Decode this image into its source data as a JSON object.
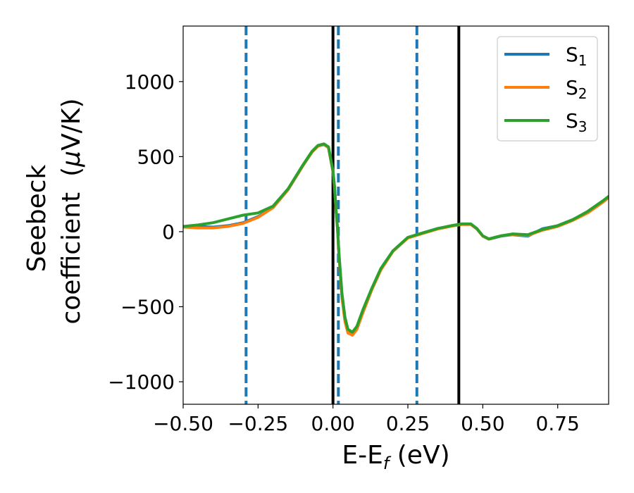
{
  "chart_data": {
    "type": "line",
    "title": "",
    "xlabel": "E-E",
    "xlabel_sub": "f",
    "xlabel_unit": " (eV)",
    "ylabel_line1": "Seebeck",
    "ylabel_line2": "coefficient",
    "ylabel_unit_prefix": "(",
    "ylabel_unit_mu": "μ",
    "ylabel_unit_suffix": "V/K)",
    "xlim": [
      -0.5,
      0.92
    ],
    "ylim": [
      -1150,
      1370
    ],
    "xticks": [
      -0.5,
      -0.25,
      0.0,
      0.25,
      0.5,
      0.75
    ],
    "xtick_labels": [
      "−0.50",
      "−0.25",
      "0.00",
      "0.25",
      "0.50",
      "0.75"
    ],
    "yticks": [
      1000,
      500,
      0,
      -500,
      -1000
    ],
    "ytick_labels": [
      "1000",
      "500",
      "0",
      "−500",
      "−1000"
    ],
    "grid": false,
    "legend_position": "top-right",
    "vlines": [
      {
        "x": -0.29,
        "style": "dashed",
        "color": "#1f77b4"
      },
      {
        "x": 0.0,
        "style": "solid",
        "color": "#000000"
      },
      {
        "x": 0.018,
        "style": "dashed",
        "color": "#1f77b4"
      },
      {
        "x": 0.28,
        "style": "dashed",
        "color": "#1f77b4"
      },
      {
        "x": 0.42,
        "style": "solid",
        "color": "#000000"
      }
    ],
    "series": [
      {
        "name": "S",
        "name_sub": "1",
        "color": "#1f77b4",
        "x": [
          -0.5,
          -0.45,
          -0.4,
          -0.35,
          -0.3,
          -0.25,
          -0.2,
          -0.15,
          -0.1,
          -0.07,
          -0.05,
          -0.03,
          -0.015,
          0.0,
          0.005,
          0.01,
          0.015,
          0.02,
          0.03,
          0.04,
          0.05,
          0.065,
          0.08,
          0.1,
          0.13,
          0.16,
          0.2,
          0.25,
          0.3,
          0.35,
          0.4,
          0.43,
          0.46,
          0.48,
          0.5,
          0.52,
          0.54,
          0.56,
          0.6,
          0.65,
          0.7,
          0.75,
          0.8,
          0.85,
          0.9,
          0.92
        ],
        "y": [
          30,
          35,
          30,
          40,
          60,
          100,
          160,
          280,
          440,
          530,
          570,
          580,
          560,
          400,
          300,
          150,
          20,
          -150,
          -420,
          -580,
          -660,
          -680,
          -640,
          -530,
          -380,
          -250,
          -130,
          -40,
          -10,
          20,
          40,
          50,
          50,
          20,
          -30,
          -50,
          -40,
          -30,
          -20,
          -30,
          20,
          40,
          80,
          130,
          200,
          230
        ]
      },
      {
        "name": "S",
        "name_sub": "2",
        "color": "#ff7f0e",
        "x": [
          -0.5,
          -0.45,
          -0.4,
          -0.35,
          -0.3,
          -0.25,
          -0.2,
          -0.15,
          -0.1,
          -0.07,
          -0.05,
          -0.03,
          -0.015,
          0.0,
          0.005,
          0.01,
          0.015,
          0.02,
          0.03,
          0.04,
          0.05,
          0.065,
          0.08,
          0.1,
          0.13,
          0.16,
          0.2,
          0.25,
          0.3,
          0.35,
          0.4,
          0.43,
          0.46,
          0.48,
          0.5,
          0.52,
          0.54,
          0.56,
          0.6,
          0.65,
          0.7,
          0.75,
          0.8,
          0.85,
          0.9,
          0.92
        ],
        "y": [
          30,
          25,
          25,
          35,
          55,
          95,
          160,
          280,
          440,
          530,
          570,
          580,
          560,
          400,
          300,
          150,
          20,
          -160,
          -440,
          -600,
          -675,
          -690,
          -650,
          -540,
          -385,
          -255,
          -132,
          -42,
          -12,
          18,
          38,
          48,
          48,
          18,
          -30,
          -50,
          -38,
          -28,
          -18,
          -25,
          10,
          35,
          75,
          125,
          195,
          228
        ]
      },
      {
        "name": "S",
        "name_sub": "3",
        "color": "#2ca02c",
        "x": [
          -0.5,
          -0.45,
          -0.4,
          -0.35,
          -0.3,
          -0.25,
          -0.2,
          -0.15,
          -0.1,
          -0.07,
          -0.05,
          -0.03,
          -0.015,
          0.0,
          0.005,
          0.01,
          0.015,
          0.02,
          0.03,
          0.04,
          0.05,
          0.065,
          0.08,
          0.1,
          0.13,
          0.16,
          0.2,
          0.25,
          0.3,
          0.35,
          0.4,
          0.43,
          0.46,
          0.48,
          0.5,
          0.52,
          0.54,
          0.56,
          0.6,
          0.65,
          0.7,
          0.75,
          0.8,
          0.85,
          0.9,
          0.92
        ],
        "y": [
          35,
          45,
          60,
          85,
          110,
          125,
          170,
          285,
          445,
          535,
          575,
          585,
          565,
          405,
          305,
          155,
          25,
          -145,
          -410,
          -570,
          -650,
          -670,
          -630,
          -520,
          -375,
          -245,
          -128,
          -38,
          -8,
          22,
          42,
          52,
          52,
          22,
          -28,
          -48,
          -38,
          -28,
          -15,
          -20,
          15,
          40,
          80,
          135,
          205,
          235
        ]
      }
    ]
  }
}
